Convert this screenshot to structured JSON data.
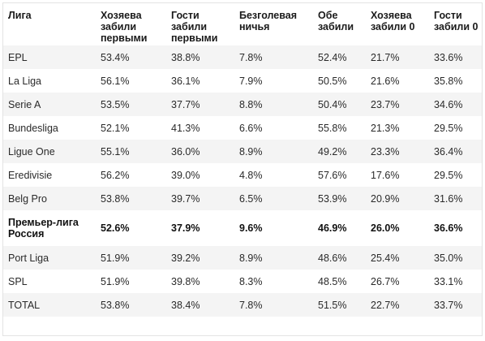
{
  "table": {
    "headers": [
      "Лига",
      "Хозяева забили первыми",
      "Гости забили первыми",
      "Безголевая ничья",
      "Обе забили",
      "Хозяева забили 0",
      "Гости забили 0"
    ],
    "rows": [
      {
        "cells": [
          "EPL",
          "53.4%",
          "38.8%",
          "7.8%",
          "52.4%",
          "21.7%",
          "33.6%"
        ]
      },
      {
        "cells": [
          "La Liga",
          "56.1%",
          "36.1%",
          "7.9%",
          "50.5%",
          "21.6%",
          "35.8%"
        ]
      },
      {
        "cells": [
          "Serie A",
          "53.5%",
          "37.7%",
          "8.8%",
          "50.4%",
          "23.7%",
          "34.6%"
        ]
      },
      {
        "cells": [
          "Bundesliga",
          "52.1%",
          "41.3%",
          "6.6%",
          "55.8%",
          "21.3%",
          "29.5%"
        ]
      },
      {
        "cells": [
          "Ligue One",
          "55.1%",
          "36.0%",
          "8.9%",
          "49.2%",
          "23.3%",
          "36.4%"
        ]
      },
      {
        "cells": [
          "Eredivisie",
          "56.2%",
          "39.0%",
          "4.8%",
          "57.6%",
          "17.6%",
          "29.5%"
        ]
      },
      {
        "cells": [
          "Belg Pro",
          "53.8%",
          "39.7%",
          "6.5%",
          "53.9%",
          "20.9%",
          "31.6%"
        ]
      },
      {
        "cells": [
          "Премьер-лига Россия",
          "52.6%",
          "37.9%",
          "9.6%",
          "46.9%",
          "26.0%",
          "36.6%"
        ],
        "highlight": true
      },
      {
        "cells": [
          "Port Liga",
          "51.9%",
          "39.2%",
          "8.9%",
          "48.6%",
          "25.4%",
          "35.0%"
        ]
      },
      {
        "cells": [
          "SPL",
          "51.9%",
          "39.8%",
          "8.3%",
          "48.5%",
          "26.7%",
          "33.1%"
        ]
      },
      {
        "cells": [
          "TOTAL",
          "53.8%",
          "38.4%",
          "7.8%",
          "51.5%",
          "22.7%",
          "33.7%"
        ]
      }
    ]
  }
}
